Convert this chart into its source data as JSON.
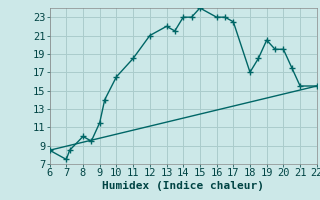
{
  "xlabel": "Humidex (Indice chaleur)",
  "bg_color": "#cce8e8",
  "grid_color": "#aacccc",
  "line_color": "#006666",
  "curve_x": [
    6,
    7,
    7.2,
    8,
    8.5,
    9,
    9.3,
    10,
    11,
    12,
    13,
    13.5,
    14,
    14.5,
    15,
    16,
    16.5,
    17,
    18,
    18.5,
    19,
    19.5,
    20,
    20.5,
    21,
    22
  ],
  "curve_y": [
    8.5,
    7.5,
    8.5,
    10,
    9.5,
    11.5,
    14,
    16.5,
    18.5,
    21,
    22,
    21.5,
    23,
    23,
    24,
    23,
    23,
    22.5,
    17,
    18.5,
    20.5,
    19.5,
    19.5,
    17.5,
    15.5,
    15.5
  ],
  "line_x": [
    6,
    22
  ],
  "line_y": [
    8.5,
    15.5
  ],
  "xmin": 6,
  "xmax": 22,
  "ymin": 7,
  "ymax": 24,
  "xticks": [
    6,
    7,
    8,
    9,
    10,
    11,
    12,
    13,
    14,
    15,
    16,
    17,
    18,
    19,
    20,
    21,
    22
  ],
  "yticks": [
    7,
    9,
    11,
    13,
    15,
    17,
    19,
    21,
    23
  ],
  "tick_fontsize": 7.5,
  "xlabel_fontsize": 8
}
